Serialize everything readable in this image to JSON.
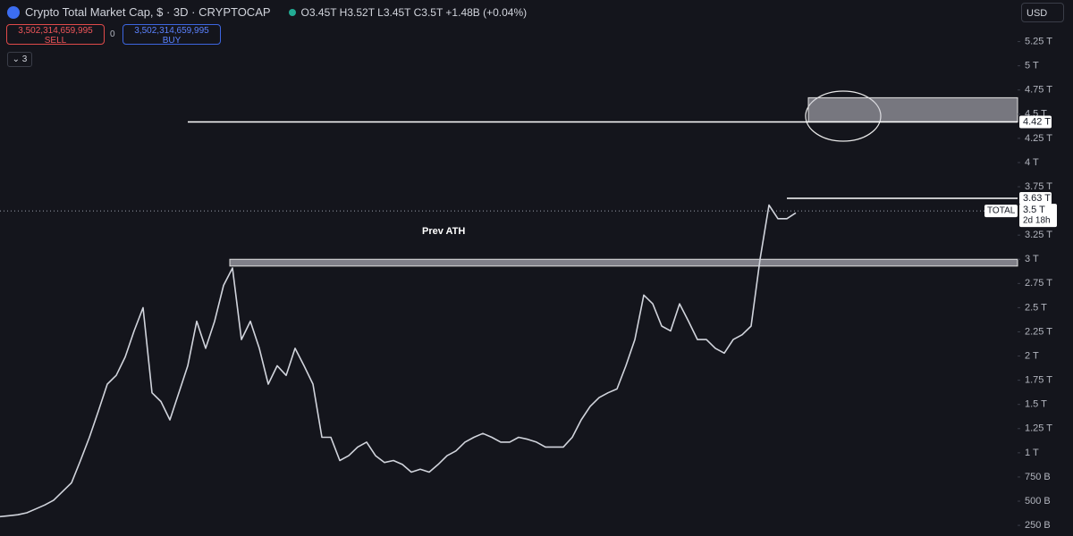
{
  "header": {
    "title": "Crypto Total Market Cap, $ · 3D · CRYPTOCAP",
    "ohlc": "O3.45T H3.52T L3.45T C3.5T +1.48B (+0.04%)",
    "sell_price": "3,502,314,659,995",
    "sell_label": "SELL",
    "spread": "0",
    "buy_price": "3,502,314,659,995",
    "buy_label": "BUY",
    "indicators": "3",
    "currency": "USD"
  },
  "chart_data": {
    "type": "line",
    "color": "#d1d4dc",
    "values": [
      0.34,
      0.35,
      0.36,
      0.38,
      0.42,
      0.46,
      0.51,
      0.6,
      0.69,
      0.92,
      1.16,
      1.43,
      1.71,
      1.8,
      1.99,
      2.26,
      2.5,
      1.62,
      1.53,
      1.34,
      1.62,
      1.9,
      2.36,
      2.08,
      2.36,
      2.73,
      2.91,
      2.17,
      2.36,
      2.08,
      1.71,
      1.9,
      1.8,
      2.08,
      1.9,
      1.71,
      1.16,
      1.16,
      0.92,
      0.97,
      1.06,
      1.11,
      0.97,
      0.9,
      0.92,
      0.88,
      0.8,
      0.83,
      0.8,
      0.88,
      0.97,
      1.02,
      1.11,
      1.16,
      1.2,
      1.16,
      1.11,
      1.11,
      1.16,
      1.14,
      1.11,
      1.06,
      1.06,
      1.06,
      1.16,
      1.34,
      1.48,
      1.57,
      1.62,
      1.66,
      1.9,
      2.17,
      2.63,
      2.54,
      2.31,
      2.26,
      2.54,
      2.36,
      2.17,
      2.17,
      2.08,
      2.03,
      2.17,
      2.22,
      2.31,
      3.0,
      3.56,
      3.42,
      3.42,
      3.48
    ],
    "ylim": [
      0.14,
      5.68
    ],
    "yticks": [
      {
        "value": 0.25,
        "label": "250 B"
      },
      {
        "value": 0.5,
        "label": "500 B"
      },
      {
        "value": 0.75,
        "label": "750 B"
      },
      {
        "value": 1,
        "label": "1 T"
      },
      {
        "value": 1.25,
        "label": "1.25 T"
      },
      {
        "value": 1.5,
        "label": "1.5 T"
      },
      {
        "value": 1.75,
        "label": "1.75 T"
      },
      {
        "value": 2,
        "label": "2 T"
      },
      {
        "value": 2.25,
        "label": "2.25 T"
      },
      {
        "value": 2.5,
        "label": "2.5 T"
      },
      {
        "value": 2.75,
        "label": "2.75 T"
      },
      {
        "value": 3,
        "label": "3 T"
      },
      {
        "value": 3.25,
        "label": "3.25 T"
      },
      {
        "value": 3.75,
        "label": "3.75 T"
      },
      {
        "value": 4,
        "label": "4 T"
      },
      {
        "value": 4.25,
        "label": "4.25 T"
      },
      {
        "value": 4.5,
        "label": "4.5 T"
      },
      {
        "value": 4.75,
        "label": "4.75 T"
      },
      {
        "value": 5,
        "label": "5 T"
      },
      {
        "value": 5.25,
        "label": "5.25 T"
      }
    ],
    "annotations": [
      {
        "text": "Prev ATH"
      }
    ],
    "levels": [
      {
        "value": 4.42,
        "label": "4.42 T"
      },
      {
        "value": 3.63,
        "label": "3.63 T"
      }
    ],
    "zones": [
      {
        "from": 4.42,
        "to": 4.67
      },
      {
        "from": 2.93,
        "to": 3.0
      }
    ],
    "last_price": {
      "value": 3.5,
      "label": "3.5 T",
      "symbol": "TOTAL",
      "countdown": "2d 18h"
    }
  }
}
